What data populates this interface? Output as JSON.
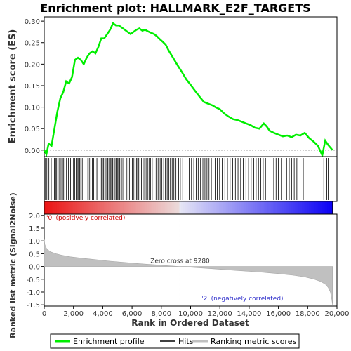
{
  "chart_data": {
    "type": "line",
    "title": "Enrichment plot: HALLMARK_E2F_TARGETS",
    "xlabel": "Rank in Ordered Dataset",
    "es_panel": {
      "ylabel": "Enrichment score (ES)",
      "ylim": [
        -0.015,
        0.31
      ],
      "yticks": [
        "0.00",
        "0.05",
        "0.10",
        "0.15",
        "0.20",
        "0.25",
        "0.30"
      ],
      "ytick_values": [
        0,
        0.05,
        0.1,
        0.15,
        0.2,
        0.25,
        0.3
      ],
      "series": [
        {
          "name": "Enrichment profile",
          "color": "#00ee00",
          "x": [
            0,
            150,
            300,
            500,
            700,
            900,
            1100,
            1300,
            1500,
            1700,
            1900,
            2100,
            2300,
            2500,
            2700,
            2900,
            3100,
            3300,
            3500,
            3700,
            3900,
            4100,
            4300,
            4500,
            4700,
            4900,
            5100,
            5300,
            5500,
            5700,
            5900,
            6100,
            6300,
            6500,
            6700,
            6900,
            7100,
            7300,
            7500,
            7700,
            7900,
            8100,
            8300,
            8500,
            8800,
            9100,
            9400,
            9700,
            10000,
            10300,
            10600,
            10900,
            11200,
            11500,
            11700,
            12000,
            12300,
            12600,
            12900,
            13200,
            13500,
            13800,
            14100,
            14400,
            14700,
            15000,
            15200,
            15400,
            15700,
            16000,
            16300,
            16600,
            16900,
            17200,
            17500,
            17800,
            18100,
            18400,
            18700,
            19000,
            19200,
            19400,
            19700
          ],
          "y": [
            0.0,
            -0.01,
            0.015,
            0.01,
            0.05,
            0.09,
            0.12,
            0.135,
            0.16,
            0.155,
            0.17,
            0.21,
            0.215,
            0.21,
            0.2,
            0.215,
            0.225,
            0.23,
            0.225,
            0.24,
            0.26,
            0.26,
            0.27,
            0.28,
            0.295,
            0.29,
            0.29,
            0.285,
            0.28,
            0.275,
            0.27,
            0.275,
            0.28,
            0.283,
            0.278,
            0.28,
            0.276,
            0.273,
            0.27,
            0.265,
            0.258,
            0.252,
            0.245,
            0.232,
            0.215,
            0.198,
            0.182,
            0.165,
            0.152,
            0.138,
            0.125,
            0.112,
            0.108,
            0.104,
            0.1,
            0.095,
            0.085,
            0.078,
            0.072,
            0.07,
            0.066,
            0.062,
            0.058,
            0.052,
            0.05,
            0.062,
            0.055,
            0.045,
            0.04,
            0.036,
            0.032,
            0.034,
            0.03,
            0.036,
            0.034,
            0.04,
            0.028,
            0.02,
            0.01,
            -0.012,
            0.022,
            0.012,
            0.0
          ]
        }
      ]
    },
    "hits_panel": {
      "hit_ranks": [
        60,
        180,
        320,
        480,
        600,
        700,
        780,
        850,
        950,
        1050,
        1150,
        1250,
        1330,
        1420,
        1520,
        1650,
        1800,
        1900,
        2000,
        2080,
        2180,
        2260,
        2340,
        2420,
        2500,
        2600,
        2980,
        3080,
        3180,
        3280,
        3380,
        3480,
        3600,
        3820,
        3900,
        3980,
        4060,
        4140,
        4220,
        4340,
        4420,
        4520,
        4600,
        4680,
        4760,
        4840,
        4920,
        5000,
        5080,
        5160,
        5240,
        5320,
        5420,
        5620,
        5720,
        5820,
        5920,
        6020,
        6100,
        6200,
        6300,
        6380,
        6460,
        6540,
        6640,
        6760,
        6860,
        6960,
        7060,
        7160,
        7260,
        7380,
        7500,
        7640,
        7780,
        7920,
        8040,
        8160,
        8280,
        8400,
        8520,
        8620,
        8740,
        8860,
        9000,
        9180,
        9300,
        9460,
        9620,
        9760,
        9900,
        10060,
        10220,
        10380,
        10520,
        10680,
        10840,
        10980,
        11120,
        11260,
        11420,
        11540,
        11680,
        11820,
        11980,
        12160,
        12340,
        12520,
        12700,
        12880,
        13060,
        13240,
        13420,
        13600,
        13780,
        13960,
        14140,
        14320,
        14480,
        14640,
        14800,
        14960,
        15120,
        15680,
        15840,
        16000,
        16200,
        16380,
        16560,
        16740,
        16900,
        17080,
        17260,
        17480,
        17700,
        17960,
        18300,
        19100,
        19300,
        19400
      ]
    },
    "metric_panel": {
      "ylabel": "Ranked list metric (Signal2Noise)",
      "ylim": [
        -1.55,
        2.05
      ],
      "yticks": [
        "-1.5",
        "-1.0",
        "-0.5",
        "0.0",
        "0.5",
        "1.0",
        "1.5",
        "2.0"
      ],
      "ytick_values": [
        -1.5,
        -1.0,
        -0.5,
        0,
        0.5,
        1.0,
        1.5,
        2.0
      ],
      "curve_x": [
        0,
        50,
        150,
        300,
        500,
        800,
        1200,
        1800,
        2500,
        3500,
        4500,
        5500,
        6500,
        7500,
        8500,
        9280,
        10000,
        11000,
        12000,
        13000,
        14000,
        15000,
        16000,
        17000,
        17800,
        18400,
        18900,
        19200,
        19400,
        19550,
        19650,
        19700
      ],
      "curve_y": [
        1.05,
        0.85,
        0.72,
        0.63,
        0.56,
        0.5,
        0.44,
        0.38,
        0.33,
        0.27,
        0.21,
        0.16,
        0.11,
        0.07,
        0.03,
        0.0,
        -0.03,
        -0.07,
        -0.11,
        -0.15,
        -0.19,
        -0.23,
        -0.28,
        -0.34,
        -0.41,
        -0.49,
        -0.59,
        -0.69,
        -0.82,
        -1.0,
        -1.3,
        -1.5
      ],
      "zero_cross_rank": 9280,
      "zero_cross_label": "Zero cross at 9280",
      "pos_label": "'0' (positively correlated)",
      "neg_label": "'2' (negatively correlated)"
    },
    "xlim": [
      0,
      20000
    ],
    "xticks": [
      "0",
      "2,000",
      "4,000",
      "6,000",
      "8,000",
      "10,000",
      "12,000",
      "14,000",
      "16,000",
      "18,000",
      "20,000"
    ],
    "xtick_values": [
      0,
      2000,
      4000,
      6000,
      8000,
      10000,
      12000,
      14000,
      16000,
      18000,
      20000
    ],
    "n_ranks": 19700,
    "legend": {
      "placement": "bottom",
      "entries": [
        "Enrichment profile",
        "Hits",
        "Ranking metric scores"
      ]
    },
    "colors": {
      "profile": "#00ee00",
      "hit": "#000000",
      "metric": "#c0c0c0",
      "pos_label": "#cc0000",
      "neg_label": "#3333cc"
    }
  }
}
